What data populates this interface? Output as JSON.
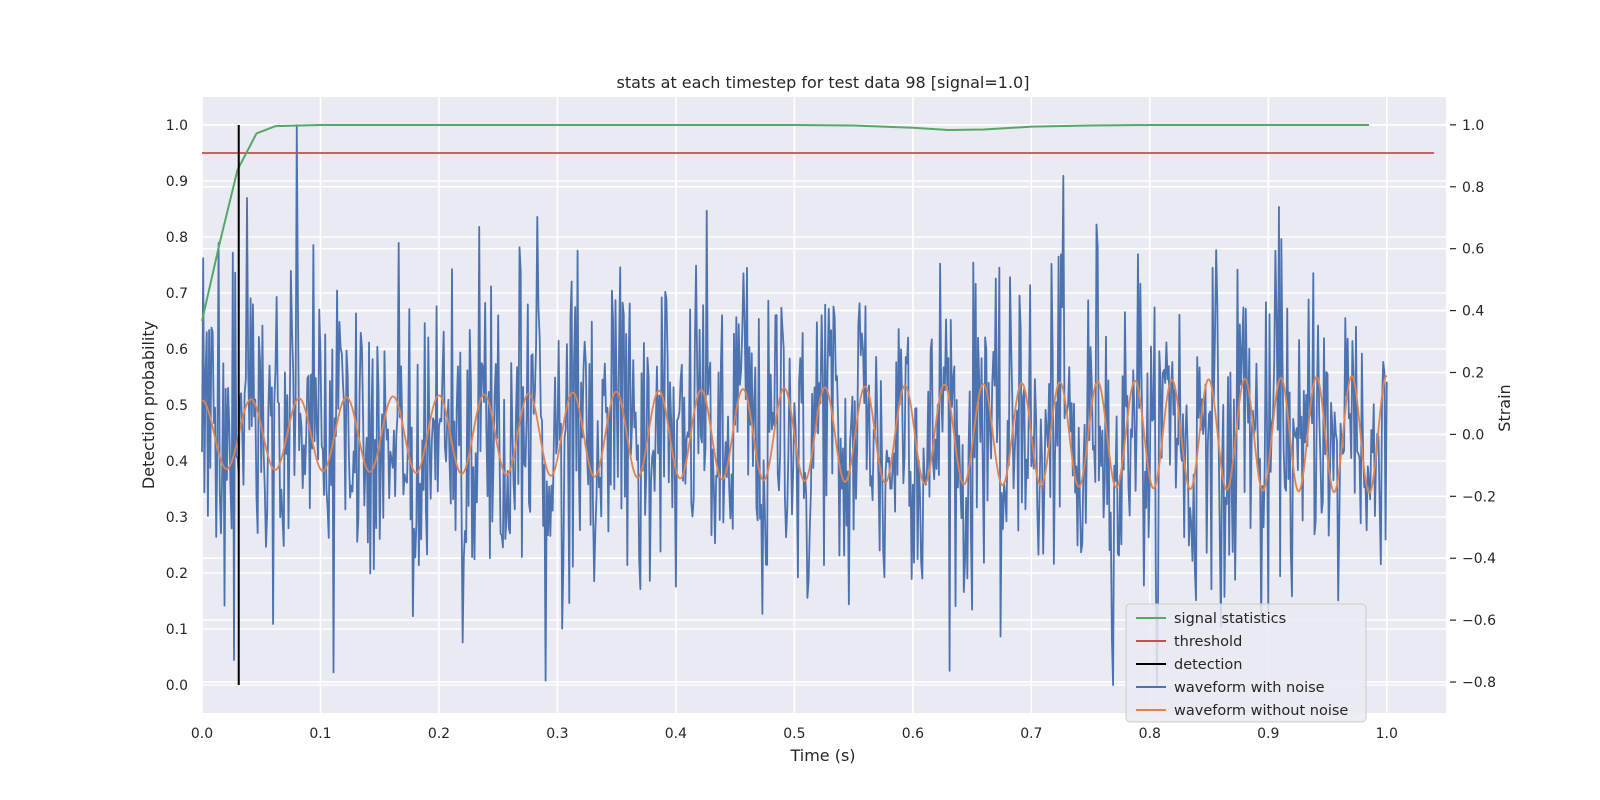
{
  "chart_data": {
    "type": "line",
    "title": "stats at each timestep for test data 98 [signal=1.0]",
    "xlabel": "Time (s)",
    "ylabel": "Detection probability",
    "y2label": "Strain",
    "xlim": [
      0.0,
      1.05
    ],
    "ylim": [
      -0.05,
      1.05
    ],
    "y2lim": [
      -0.9,
      1.09
    ],
    "grid": true,
    "legend_position": "lower-right",
    "x_ticks": [
      "0.0",
      "0.1",
      "0.2",
      "0.3",
      "0.4",
      "0.5",
      "0.6",
      "0.7",
      "0.8",
      "0.9",
      "1.0"
    ],
    "y_ticks": [
      "0.0",
      "0.1",
      "0.2",
      "0.3",
      "0.4",
      "0.5",
      "0.6",
      "0.7",
      "0.8",
      "0.9",
      "1.0"
    ],
    "y2_ticks": [
      "−0.8",
      "−0.6",
      "−0.4",
      "−0.2",
      "0.0",
      "0.2",
      "0.4",
      "0.6",
      "0.8",
      "1.0"
    ],
    "x_tick_values": [
      0,
      0.1,
      0.2,
      0.3,
      0.4,
      0.5,
      0.6,
      0.7,
      0.8,
      0.9,
      1.0
    ],
    "y_tick_values": [
      0,
      0.1,
      0.2,
      0.3,
      0.4,
      0.5,
      0.6,
      0.7,
      0.8,
      0.9,
      1.0
    ],
    "y2_tick_values": [
      -0.8,
      -0.6,
      -0.4,
      -0.2,
      0,
      0.2,
      0.4,
      0.6,
      0.8,
      1.0
    ],
    "colors": {
      "plot_bg": "#eaeaf2",
      "grid": "#ffffff",
      "signal_statistics": "#55a868",
      "threshold": "#c44e52",
      "detection": "#000000",
      "waveform_with_noise": "#4c72b0",
      "waveform_without_noise": "#dd8452"
    },
    "series": [
      {
        "name": "signal statistics",
        "axis": "left",
        "x": [
          0.0,
          0.015,
          0.03,
          0.046,
          0.062,
          0.1,
          0.2,
          0.3,
          0.4,
          0.5,
          0.55,
          0.6,
          0.63,
          0.66,
          0.7,
          0.75,
          0.8,
          0.9,
          0.985
        ],
        "y": [
          0.65,
          0.79,
          0.92,
          0.985,
          0.998,
          1.0,
          1.0,
          1.0,
          1.0,
          1.0,
          0.999,
          0.995,
          0.991,
          0.992,
          0.997,
          0.999,
          1.0,
          1.0,
          1.0
        ]
      },
      {
        "name": "threshold",
        "axis": "left",
        "x": [
          0.0,
          1.04
        ],
        "y": [
          0.95,
          0.95
        ]
      },
      {
        "name": "detection",
        "axis": "left",
        "x": [
          0.031,
          0.031
        ],
        "y": [
          0.0,
          1.0
        ]
      },
      {
        "name": "waveform with noise",
        "axis": "right",
        "x_start": 0.0,
        "x_end": 1.0,
        "amplitude_std": 0.25,
        "y_range": [
          -0.81,
          1.0
        ]
      },
      {
        "name": "waveform without noise",
        "axis": "right",
        "x_start": 0.0,
        "x_end": 1.0,
        "amplitude_start": 0.11,
        "amplitude_end": 0.19,
        "frequency_start": 24,
        "frequency_end": 34
      }
    ]
  }
}
